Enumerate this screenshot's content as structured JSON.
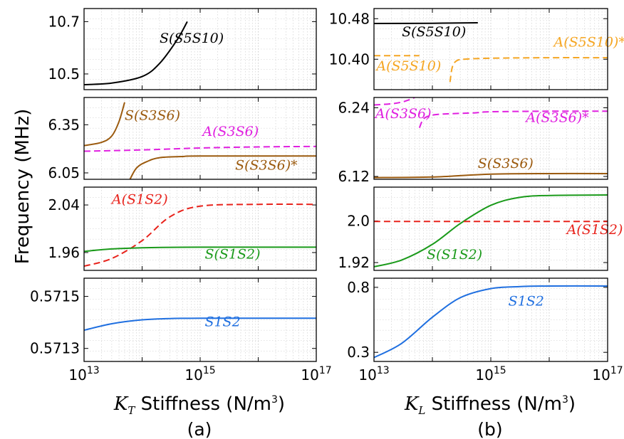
{
  "figure": {
    "ylabel": "Frequency (MHz)",
    "columns": [
      {
        "xlabel_symbol": "K",
        "xlabel_sub": "T",
        "xlabel_rest": " Stiffness (N/m",
        "xlabel_sup": "3",
        "xlabel_close": ")",
        "caption": "(a)"
      },
      {
        "xlabel_symbol": "K",
        "xlabel_sub": "L",
        "xlabel_rest": " Stiffness (N/m",
        "xlabel_sup": "3",
        "xlabel_close": ")",
        "caption": "(b)"
      }
    ],
    "colors": {
      "black": "#000000",
      "orange": "#f5a623",
      "magenta": "#e020e0",
      "brown": "#9b5a0e",
      "red": "#e8231c",
      "green": "#1a9a1a",
      "blue": "#1f6fe0"
    }
  },
  "chart_data": [
    {
      "type": "line",
      "panel": "a-row1",
      "xscale": "log",
      "xlim": [
        10000000000000.0,
        1e+17
      ],
      "ylim": [
        10.44,
        10.75
      ],
      "xticks": [],
      "yticks": [
        10.5,
        10.7
      ],
      "ytick_labels": [
        "10.5",
        "10.7"
      ],
      "series": [
        {
          "label": "S(S5S10)",
          "color": "#000000",
          "style": "solid",
          "x": [
            10000000000000.0,
            30000000000000.0,
            100000000000000.0,
            200000000000000.0,
            400000000000000.0,
            600000000000000.0
          ],
          "y": [
            10.459,
            10.465,
            10.49,
            10.54,
            10.63,
            10.7
          ]
        }
      ],
      "annotations": [
        {
          "text": "S(S5S10)",
          "color": "#000000",
          "x": 200000000000000.0,
          "y": 10.62
        }
      ]
    },
    {
      "type": "line",
      "panel": "a-row2",
      "xscale": "log",
      "xlim": [
        10000000000000.0,
        1e+17
      ],
      "ylim": [
        6.01,
        6.52
      ],
      "xticks": [],
      "yticks": [
        6.05,
        6.35
      ],
      "ytick_labels": [
        "6.05",
        "6.35"
      ],
      "series": [
        {
          "label": "S(S3S6)",
          "color": "#9b5a0e",
          "style": "solid",
          "x": [
            10000000000000.0,
            20000000000000.0,
            30000000000000.0,
            40000000000000.0,
            50000000000000.0
          ],
          "y": [
            6.22,
            6.24,
            6.28,
            6.37,
            6.49
          ]
        },
        {
          "label": "A(S3S6)",
          "color": "#e020e0",
          "style": "dashed",
          "x": [
            10000000000000.0,
            100000000000000.0,
            1000000000000000.0,
            1e+16,
            1e+17
          ],
          "y": [
            6.185,
            6.193,
            6.205,
            6.212,
            6.215
          ]
        },
        {
          "label": "S(S3S6)*",
          "color": "#9b5a0e",
          "style": "solid",
          "x": [
            60000000000000.0,
            80000000000000.0,
            120000000000000.0,
            200000000000000.0,
            500000000000000.0,
            1000000000000000.0,
            1e+17
          ],
          "y": [
            6.0,
            6.08,
            6.12,
            6.145,
            6.152,
            6.155,
            6.155
          ]
        }
      ],
      "annotations": [
        {
          "text": "S(S3S6)",
          "color": "#9b5a0e",
          "x": 50000000000000.0,
          "y": 6.38
        },
        {
          "text": "A(S3S6)",
          "color": "#e020e0",
          "x": 1100000000000000.0,
          "y": 6.28
        },
        {
          "text": "S(S3S6)*",
          "color": "#9b5a0e",
          "x": 4000000000000000.0,
          "y": 6.07
        }
      ]
    },
    {
      "type": "line",
      "panel": "a-row3",
      "xscale": "log",
      "xlim": [
        10000000000000.0,
        1e+17
      ],
      "ylim": [
        1.93,
        2.07
      ],
      "xticks": [],
      "yticks": [
        1.96,
        2.04
      ],
      "ytick_labels": [
        "1.96",
        "2.04"
      ],
      "series": [
        {
          "label": "A(S1S2)",
          "color": "#e8231c",
          "style": "dashed",
          "x": [
            10000000000000.0,
            30000000000000.0,
            100000000000000.0,
            300000000000000.0,
            1000000000000000.0,
            1e+16,
            1e+17
          ],
          "y": [
            1.937,
            1.95,
            1.98,
            2.02,
            2.038,
            2.041,
            2.041
          ]
        },
        {
          "label": "S(S1S2)",
          "color": "#1a9a1a",
          "style": "solid",
          "x": [
            10000000000000.0,
            30000000000000.0,
            100000000000000.0,
            1000000000000000.0,
            1e+17
          ],
          "y": [
            1.962,
            1.966,
            1.968,
            1.969,
            1.969
          ]
        }
      ],
      "annotations": [
        {
          "text": "A(S1S2)",
          "color": "#e8231c",
          "x": 30000000000000.0,
          "y": 2.042
        },
        {
          "text": "S(S1S2)",
          "color": "#1a9a1a",
          "x": 1200000000000000.0,
          "y": 1.95
        }
      ]
    },
    {
      "type": "line",
      "panel": "a-row4",
      "xscale": "log",
      "xlim": [
        10000000000000.0,
        1e+17
      ],
      "ylim": [
        0.57125,
        0.57157
      ],
      "xticks": [
        10000000000000.0,
        1000000000000000.0,
        1e+17
      ],
      "yticks": [
        0.5713,
        0.5715
      ],
      "ytick_labels": [
        "0.5713",
        "0.5715"
      ],
      "series": [
        {
          "label": "S1S2",
          "color": "#1f6fe0",
          "style": "solid",
          "x": [
            10000000000000.0,
            30000000000000.0,
            100000000000000.0,
            300000000000000.0,
            1000000000000000.0,
            1e+16,
            1e+17
          ],
          "y": [
            0.57137,
            0.571395,
            0.57141,
            0.571415,
            0.571416,
            0.571416,
            0.571416
          ]
        }
      ],
      "annotations": [
        {
          "text": "S1S2",
          "color": "#1f6fe0",
          "x": 1200000000000000.0,
          "y": 0.571385
        }
      ]
    },
    {
      "type": "line",
      "panel": "b-row1",
      "xscale": "log",
      "xlim": [
        10000000000000.0,
        1e+17
      ],
      "ylim": [
        10.34,
        10.5
      ],
      "xticks": [],
      "yticks": [
        10.4,
        10.48
      ],
      "ytick_labels": [
        "10.40",
        "10.48"
      ],
      "series": [
        {
          "label": "S(S5S10)",
          "color": "#000000",
          "style": "solid",
          "x": [
            10000000000000.0,
            100000000000000.0,
            600000000000000.0
          ],
          "y": [
            10.4705,
            10.471,
            10.472
          ]
        },
        {
          "label": "A(S5S10)",
          "color": "#f5a623",
          "style": "dashed",
          "x": [
            10000000000000.0,
            60000000000000.0
          ],
          "y": [
            10.407,
            10.407
          ]
        },
        {
          "label": "A(S5S10)*",
          "color": "#f5a623",
          "style": "dashed",
          "x": [
            200000000000000.0,
            220000000000000.0,
            260000000000000.0,
            350000000000000.0,
            1000000000000000.0,
            1e+16,
            1e+17
          ],
          "y": [
            10.355,
            10.385,
            10.397,
            10.4,
            10.402,
            10.403,
            10.403
          ]
        }
      ],
      "annotations": [
        {
          "text": "S(S5S10)",
          "color": "#000000",
          "x": 30000000000000.0,
          "y": 10.445
        },
        {
          "text": "A(S5S10)",
          "color": "#f5a623",
          "x": 11000000000000.0,
          "y": 10.378
        },
        {
          "text": "A(S5S10)*",
          "color": "#f5a623",
          "x": 1.2e+16,
          "y": 10.425
        }
      ]
    },
    {
      "type": "line",
      "panel": "b-row2",
      "xscale": "log",
      "xlim": [
        10000000000000.0,
        1e+17
      ],
      "ylim": [
        6.115,
        6.258
      ],
      "xticks": [],
      "yticks": [
        6.12,
        6.24
      ],
      "ytick_labels": [
        "6.12",
        "6.24"
      ],
      "series": [
        {
          "label": "A(S3S6)",
          "color": "#e020e0",
          "style": "dashed",
          "x": [
            10000000000000.0,
            20000000000000.0,
            30000000000000.0,
            40000000000000.0,
            50000000000000.0
          ],
          "y": [
            6.245,
            6.247,
            6.25,
            6.254,
            6.258
          ]
        },
        {
          "label": "A(S3S6)*",
          "color": "#e020e0",
          "style": "dashed",
          "x": [
            60000000000000.0,
            70000000000000.0,
            90000000000000.0,
            150000000000000.0,
            500000000000000.0,
            1000000000000000.0,
            1e+16,
            1e+17
          ],
          "y": [
            6.205,
            6.22,
            6.226,
            6.229,
            6.231,
            6.233,
            6.234,
            6.234
          ]
        },
        {
          "label": "S(S3S6)",
          "color": "#9b5a0e",
          "style": "solid",
          "x": [
            10000000000000.0,
            100000000000000.0,
            1000000000000000.0,
            1e+16,
            1e+17
          ],
          "y": [
            6.118,
            6.119,
            6.124,
            6.125,
            6.125
          ]
        }
      ],
      "annotations": [
        {
          "text": "A(S3S6)",
          "color": "#e020e0",
          "x": 10500000000000.0,
          "y": 6.222
        },
        {
          "text": "A(S3S6)*",
          "color": "#e020e0",
          "x": 4000000000000000.0,
          "y": 6.215
        },
        {
          "text": "S(S3S6)",
          "color": "#9b5a0e",
          "x": 600000000000000.0,
          "y": 6.135
        }
      ]
    },
    {
      "type": "line",
      "panel": "b-row3",
      "xscale": "log",
      "xlim": [
        10000000000000.0,
        1e+17
      ],
      "ylim": [
        1.905,
        2.065
      ],
      "xticks": [],
      "yticks": [
        1.92,
        2.0
      ],
      "ytick_labels": [
        "1.92",
        "2.0"
      ],
      "series": [
        {
          "label": "S(S1S2)",
          "color": "#1a9a1a",
          "style": "solid",
          "x": [
            10000000000000.0,
            30000000000000.0,
            100000000000000.0,
            300000000000000.0,
            1000000000000000.0,
            3000000000000000.0,
            1e+16,
            1e+17
          ],
          "y": [
            1.912,
            1.925,
            1.955,
            1.995,
            2.03,
            2.045,
            2.049,
            2.05
          ]
        },
        {
          "label": "A(S1S2)",
          "color": "#e8231c",
          "style": "dashed",
          "x": [
            10000000000000.0,
            1000000000000000.0,
            1e+17
          ],
          "y": [
            1.999,
            1.999,
            1.999
          ]
        }
      ],
      "annotations": [
        {
          "text": "A(S1S2)",
          "color": "#e8231c",
          "x": 2e+16,
          "y": 1.975
        },
        {
          "text": "S(S1S2)",
          "color": "#1a9a1a",
          "x": 80000000000000.0,
          "y": 1.927
        }
      ]
    },
    {
      "type": "line",
      "panel": "b-row4",
      "xscale": "log",
      "xlim": [
        10000000000000.0,
        1e+17
      ],
      "ylim": [
        0.23,
        0.87
      ],
      "xticks": [
        10000000000000.0,
        1000000000000000.0,
        1e+17
      ],
      "yticks": [
        0.3,
        0.8
      ],
      "ytick_labels": [
        "0.3",
        "0.8"
      ],
      "series": [
        {
          "label": "S1S2",
          "color": "#1f6fe0",
          "style": "solid",
          "x": [
            10000000000000.0,
            30000000000000.0,
            100000000000000.0,
            300000000000000.0,
            1000000000000000.0,
            3000000000000000.0,
            1e+16,
            1e+17
          ],
          "y": [
            0.26,
            0.37,
            0.57,
            0.72,
            0.79,
            0.805,
            0.81,
            0.81
          ]
        }
      ],
      "annotations": [
        {
          "text": "S1S2",
          "color": "#1f6fe0",
          "x": 2000000000000000.0,
          "y": 0.66
        }
      ]
    }
  ]
}
